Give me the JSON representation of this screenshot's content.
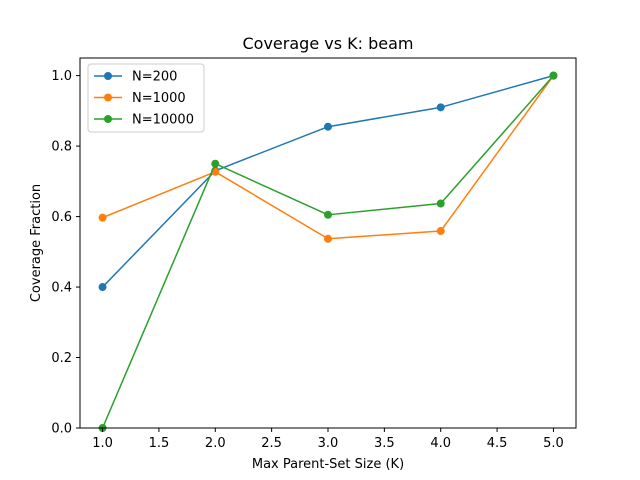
{
  "chart_data": {
    "type": "line",
    "title": "Coverage vs K: beam",
    "xlabel": "Max Parent-Set Size (K)",
    "ylabel": "Coverage Fraction",
    "x": [
      1.0,
      2.0,
      3.0,
      4.0,
      5.0
    ],
    "xlim": [
      0.8,
      5.2
    ],
    "ylim": [
      0.0,
      1.05
    ],
    "xticks": [
      "1.0",
      "1.5",
      "2.0",
      "2.5",
      "3.0",
      "3.5",
      "4.0",
      "4.5",
      "5.0"
    ],
    "yticks": [
      "0.0",
      "0.2",
      "0.4",
      "0.6",
      "0.8",
      "1.0"
    ],
    "grid": false,
    "legend_position": "top-left",
    "series": [
      {
        "name": "N=200",
        "color": "#1f77b4",
        "values": [
          0.4,
          0.73,
          0.855,
          0.91,
          1.0
        ]
      },
      {
        "name": "N=1000",
        "color": "#ff7f0e",
        "values": [
          0.597,
          0.727,
          0.537,
          0.559,
          1.0
        ]
      },
      {
        "name": "N=10000",
        "color": "#2ca02c",
        "values": [
          0.0,
          0.75,
          0.605,
          0.637,
          1.0
        ]
      }
    ]
  }
}
